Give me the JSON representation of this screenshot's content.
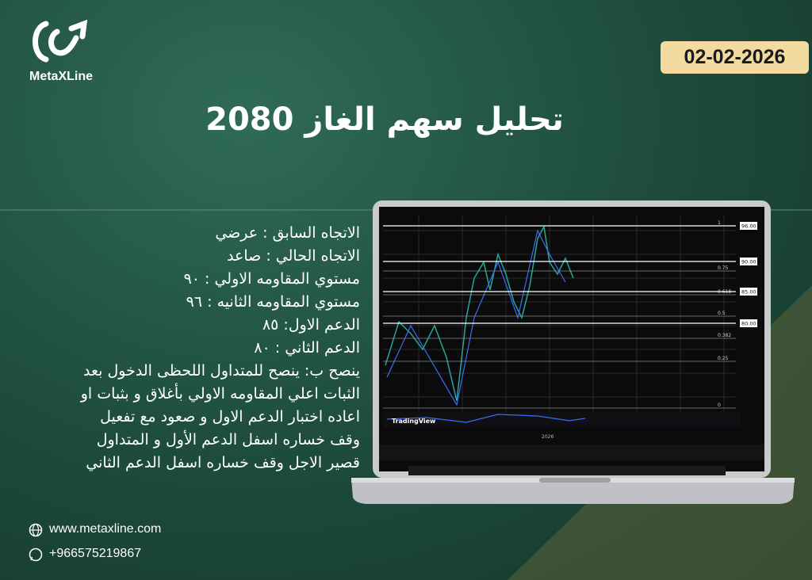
{
  "brand": {
    "name": "MetaXLine"
  },
  "date": "02-02-2026",
  "title": "تحليل سهم الغاز 2080",
  "analysis": {
    "lines": [
      "الاتجاه السابق : عرضي",
      "الاتجاه الحالي : صاعد",
      "مستوي المقاومه الاولي : ٩٠",
      "مستوي المقاومه الثانيه : ٩٦",
      "الدعم الاول: ٨٥",
      "الدعم الثاني : ٨٠",
      "ينصح ب: ينصح للمتداول اللحظى الدخول بعد",
      "الثبات اعلي المقاومه الاولي بأغلاق و بثبات او",
      "اعاده اختبار الدعم الاول و صعود مع تفعيل",
      "وقف خساره اسفل الدعم الأول و المتداول",
      "قصير الاجل وقف خساره اسفل الدعم الثاني"
    ]
  },
  "screen": {
    "fib_levels": [
      "1",
      "0.75",
      "0.618",
      "0.5",
      "0.382",
      "0.25",
      "0"
    ],
    "price_labels": [
      "96.00",
      "90.00",
      "85.00",
      "80.00"
    ],
    "watermark": "TradingView",
    "year": "2026"
  },
  "contact": {
    "website": "www.metaxline.com",
    "phone": "+966575219867"
  }
}
